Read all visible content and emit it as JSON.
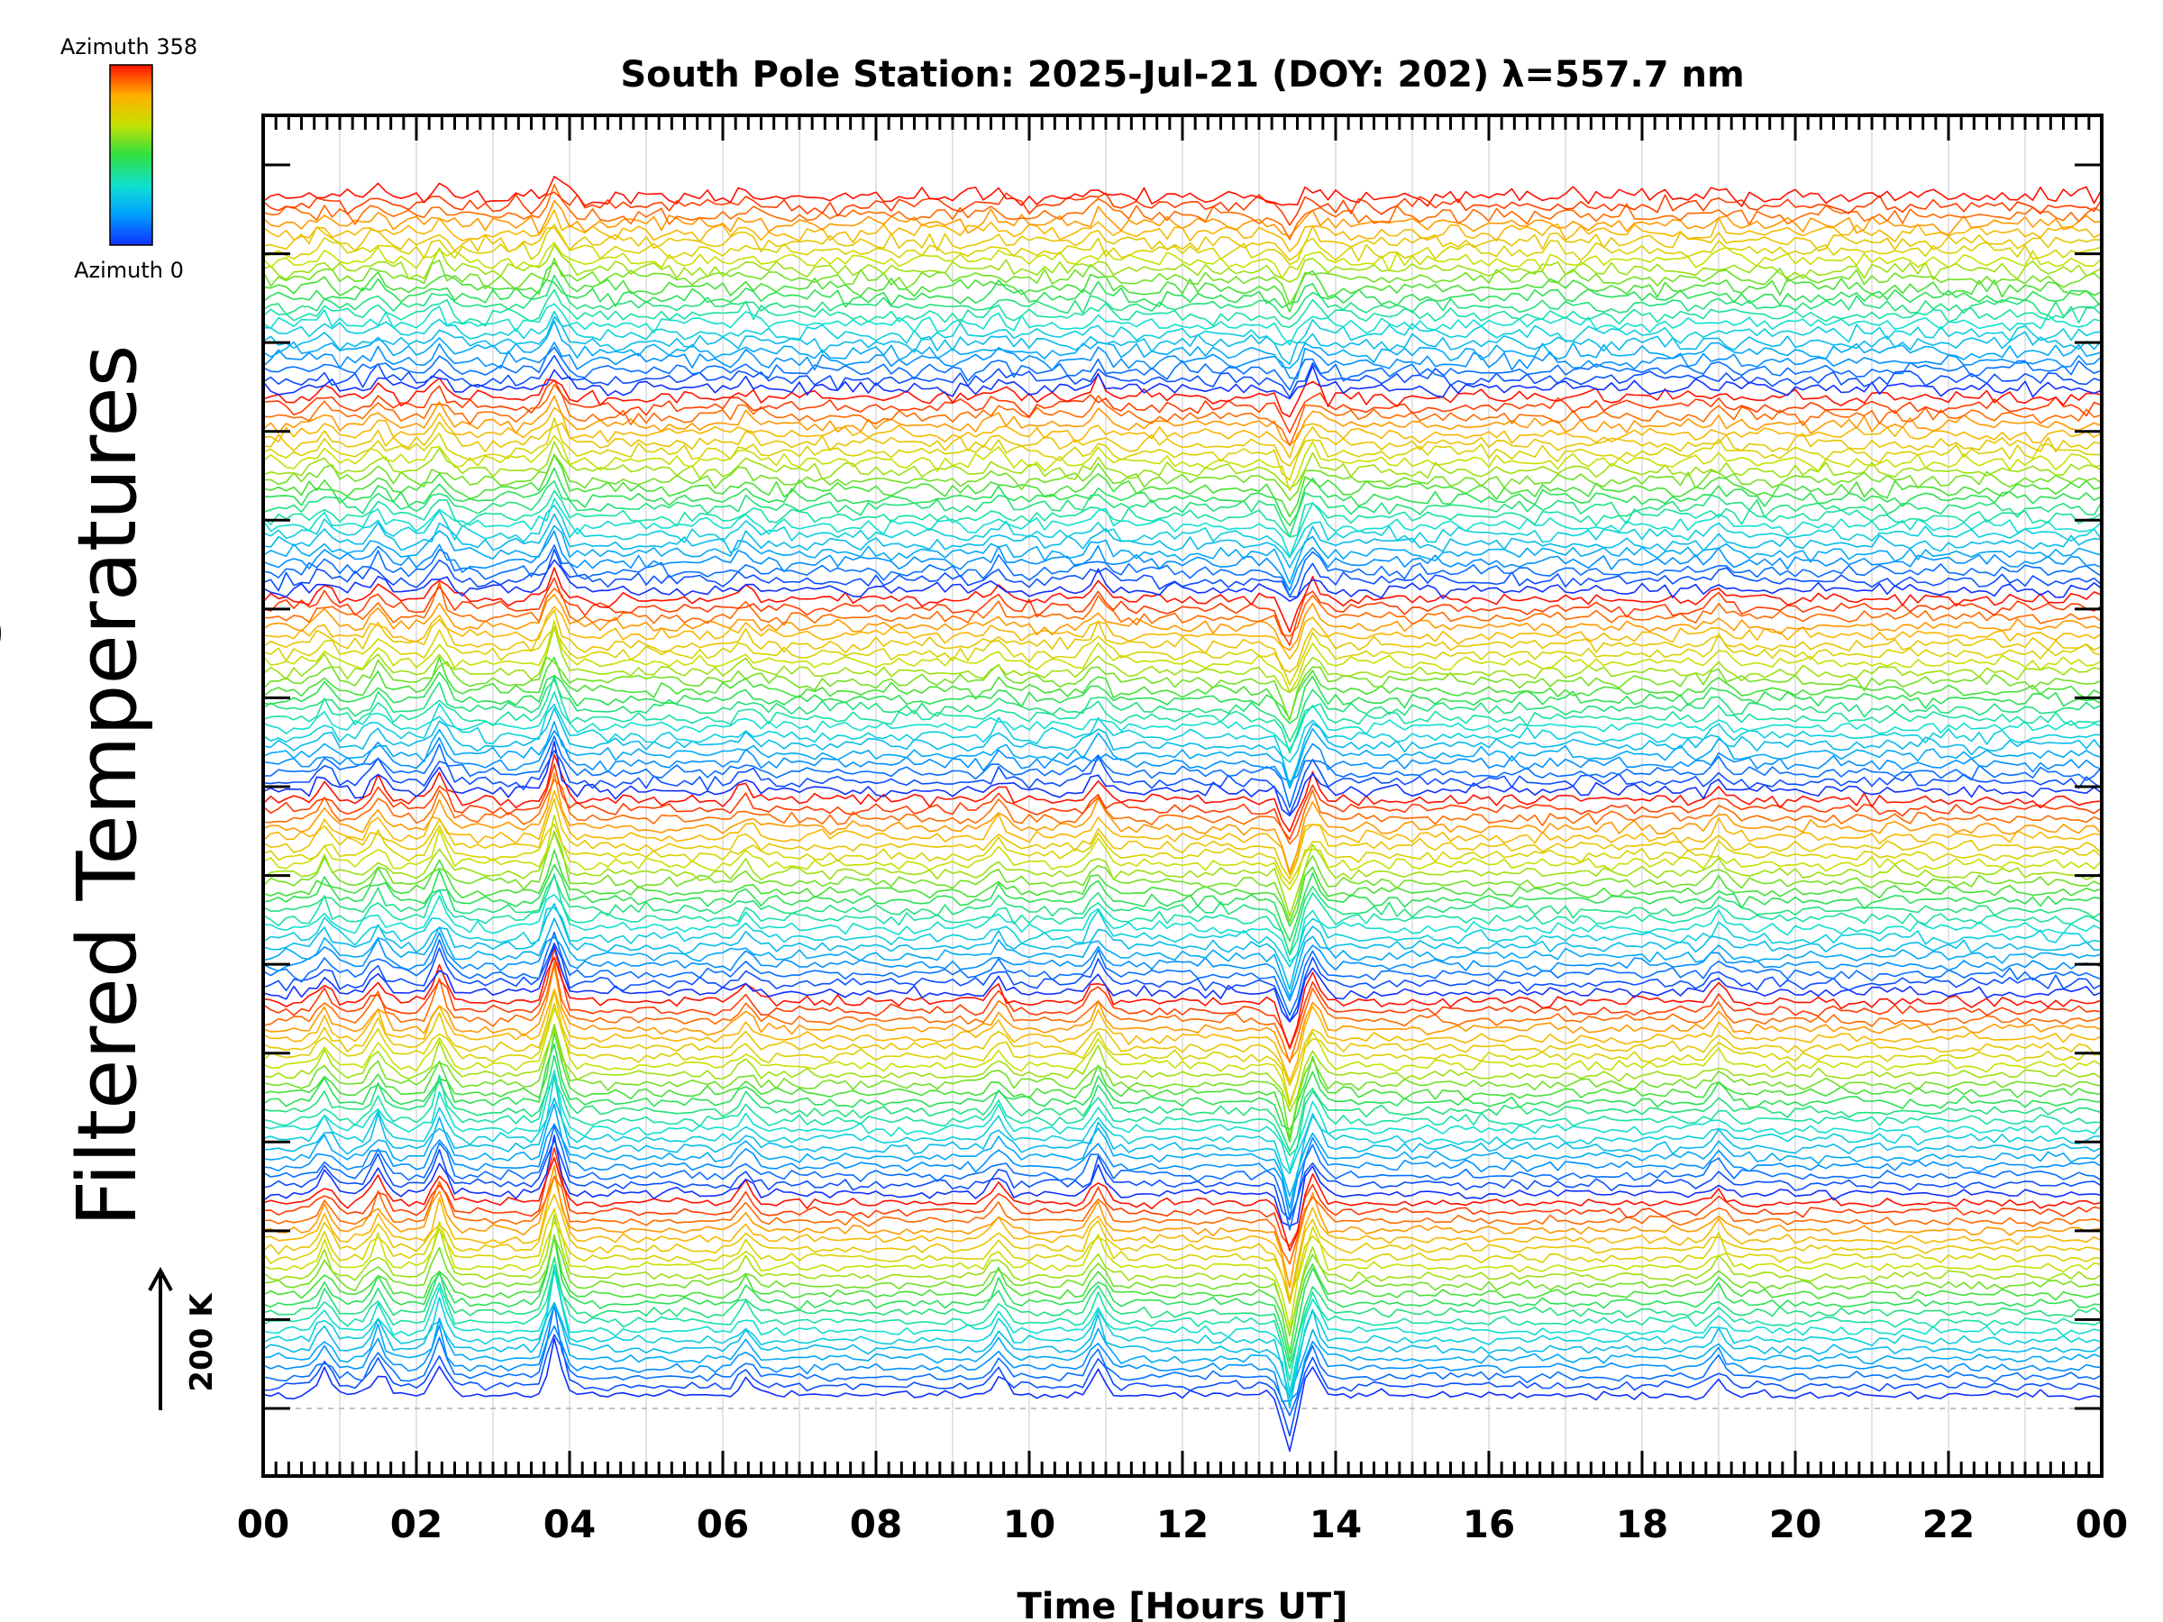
{
  "chart_data": {
    "type": "line",
    "title": "South Pole Station: 2025-Jul-21 (DOY: 202) λ=557.7 nm",
    "xlabel": "Time [Hours UT]",
    "ylabel": "Filtered Temperatures",
    "ylabel_clipped_fragment": "g",
    "x_range_hours": [
      0,
      24
    ],
    "x_ticks": [
      "00",
      "02",
      "04",
      "06",
      "08",
      "10",
      "12",
      "14",
      "16",
      "18",
      "20",
      "22",
      "00"
    ],
    "y_major_tick_count": 15,
    "scale_bar": {
      "label": "200 K",
      "value_kelvin": 200
    },
    "colorbar": {
      "top_label": "Azimuth 358",
      "bottom_label": "Azimuth 0",
      "min": 0,
      "max": 358
    },
    "colormap": [
      "#1030ff",
      "#00a0ff",
      "#10e0d0",
      "#30e040",
      "#c8e000",
      "#ffb000",
      "#ff1000"
    ],
    "series_description_visible": "stacked filtered temperature traces, color-coded by azimuth, offset vertically",
    "groups": 6,
    "traces_per_group": 22,
    "notable_event_hours": [
      0.8,
      1.5,
      2.3,
      3.8,
      6.3,
      9.6,
      10.9,
      13.4,
      13.7,
      19.0
    ],
    "grid": true,
    "legend": "top-left colorbar"
  }
}
